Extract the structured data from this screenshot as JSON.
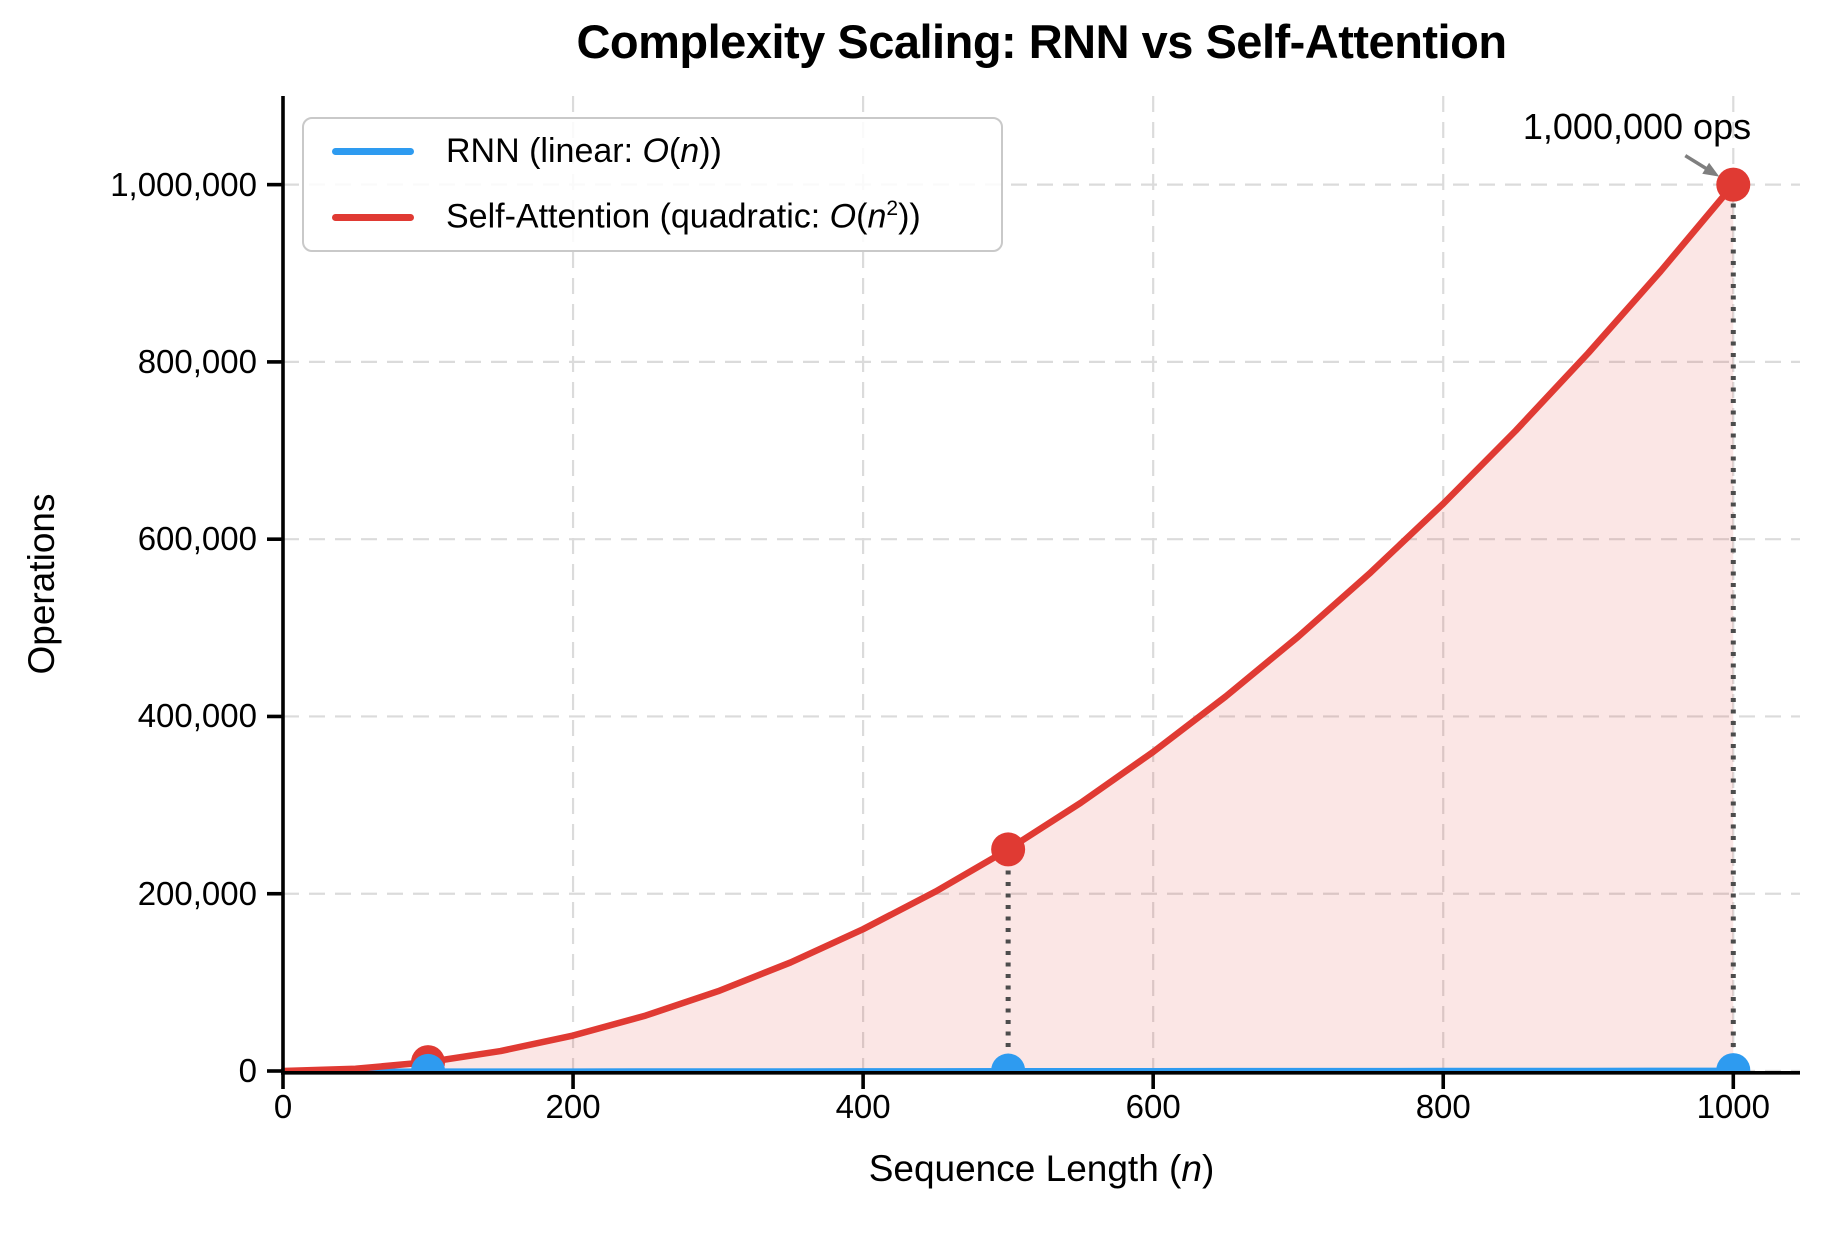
{
  "chart_data": {
    "type": "line",
    "title": "Complexity Scaling: RNN vs Self-Attention",
    "xlabel": "Sequence Length (n)",
    "xlabel_rich": [
      {
        "t": "Sequence Length ("
      },
      {
        "t": "n",
        "i": true
      },
      {
        "t": ")"
      }
    ],
    "ylabel": "Operations",
    "xlim": [
      0,
      1046
    ],
    "ylim": [
      0,
      1100000
    ],
    "x_ticks": [
      0,
      200,
      400,
      600,
      800,
      1000
    ],
    "x_tick_labels": [
      "0",
      "200",
      "400",
      "600",
      "800",
      "1000"
    ],
    "y_ticks": [
      0,
      200000,
      400000,
      600000,
      800000,
      1000000
    ],
    "y_tick_labels": [
      "0",
      "200,000",
      "400,000",
      "600,000",
      "800,000",
      "1,000,000"
    ],
    "grid": true,
    "legend_position": "upper left",
    "series": [
      {
        "name": "RNN (linear: O(n))",
        "color": "#2E9BF0",
        "line_width": 5,
        "fill": false,
        "x": [
          0,
          50,
          100,
          150,
          200,
          250,
          300,
          350,
          400,
          450,
          500,
          550,
          600,
          650,
          700,
          750,
          800,
          850,
          900,
          950,
          1000
        ],
        "values": [
          0,
          50,
          100,
          150,
          200,
          250,
          300,
          350,
          400,
          450,
          500,
          550,
          600,
          650,
          700,
          750,
          800,
          850,
          900,
          950,
          1000
        ]
      },
      {
        "name": "Self-Attention (quadratic: O(n²))",
        "color": "#E03A33",
        "line_width": 6.5,
        "fill": true,
        "fill_opacity": 0.13,
        "x": [
          0,
          50,
          100,
          150,
          200,
          250,
          300,
          350,
          400,
          450,
          500,
          550,
          600,
          650,
          700,
          750,
          800,
          850,
          900,
          950,
          1000
        ],
        "values": [
          0,
          2500,
          10000,
          22500,
          40000,
          62500,
          90000,
          122500,
          160000,
          202500,
          250000,
          302500,
          360000,
          422500,
          490000,
          562500,
          640000,
          722500,
          810000,
          902500,
          1000000
        ]
      }
    ],
    "markers": [
      {
        "series": "Self-Attention",
        "color": "#E03A33",
        "radius": 17,
        "points": [
          [
            100,
            10000
          ],
          [
            500,
            250000
          ],
          [
            1000,
            1000000
          ]
        ]
      },
      {
        "series": "RNN",
        "color": "#2E9BF0",
        "radius": 17,
        "points": [
          [
            100,
            100
          ],
          [
            500,
            500
          ],
          [
            1000,
            1000
          ]
        ]
      }
    ],
    "guide_lines": [
      {
        "x": 500,
        "y": 250000
      },
      {
        "x": 1000,
        "y": 1000000
      }
    ],
    "annotation": {
      "text": "1,000,000 ops",
      "point": [
        1000,
        1000000
      ]
    },
    "legend": {
      "entries": [
        {
          "label": "RNN (linear: O(n))",
          "color": "#2E9BF0",
          "rich": [
            {
              "t": "RNN (linear: "
            },
            {
              "t": "O",
              "i": true
            },
            {
              "t": "("
            },
            {
              "t": "n",
              "i": true
            },
            {
              "t": "))"
            }
          ]
        },
        {
          "label": "Self-Attention (quadratic: O(n²))",
          "color": "#E03A33",
          "rich": [
            {
              "t": "Self-Attention (quadratic: "
            },
            {
              "t": "O",
              "i": true
            },
            {
              "t": "("
            },
            {
              "t": "n",
              "i": true
            },
            {
              "t": "2",
              "sup": true
            },
            {
              "t": "))"
            }
          ]
        }
      ]
    },
    "colors": {
      "grid": "#DBDBDB",
      "guide": "#4C4C4C",
      "arrow": "#7F7F7F",
      "spine": "#000000",
      "text": "#000000",
      "background": "#FFFFFF"
    }
  }
}
